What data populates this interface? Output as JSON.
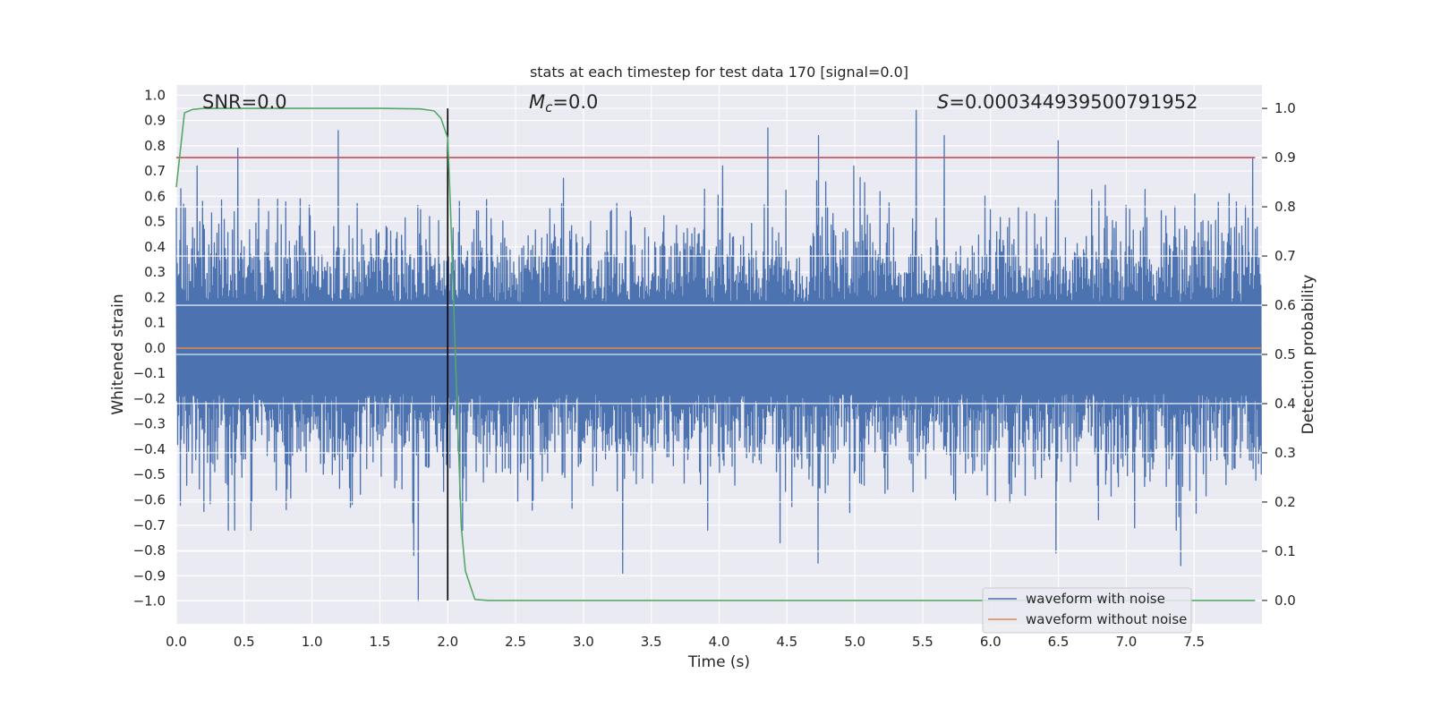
{
  "chart_data": {
    "type": "line",
    "title": "stats at each timestep for test data 170 [signal=0.0]",
    "xlabel": "Time (s)",
    "ylabel": "Whitened strain",
    "y2label": "Detection probability",
    "xlim": [
      0.0,
      8.0
    ],
    "ylim": [
      -1.09,
      1.04
    ],
    "y2lim": [
      -0.0475,
      1.0475
    ],
    "xticks": [
      "0.0",
      "0.5",
      "1.0",
      "1.5",
      "2.0",
      "2.5",
      "3.0",
      "3.5",
      "4.0",
      "4.5",
      "5.0",
      "5.5",
      "6.0",
      "6.5",
      "7.0",
      "7.5"
    ],
    "yticks": [
      "1.0",
      "0.9",
      "0.8",
      "0.7",
      "0.6",
      "0.5",
      "0.4",
      "0.3",
      "0.2",
      "0.1",
      "0.0",
      "−0.1",
      "−0.2",
      "−0.3",
      "−0.4",
      "−0.5",
      "−0.6",
      "−0.7",
      "−0.8",
      "−0.9",
      "−1.0"
    ],
    "y2ticks": [
      "1.0",
      "0.9",
      "0.8",
      "0.7",
      "0.6",
      "0.5",
      "0.4",
      "0.3",
      "0.2",
      "0.1",
      "0.0"
    ],
    "annotations": {
      "snr": "SNR=0.0",
      "mc_prefix": "M",
      "mc_sub": "c",
      "mc_suffix": "=0.0",
      "s_prefix": "S",
      "s_suffix": "=0.000344939500791952"
    },
    "series": [
      {
        "name": "waveform with noise",
        "axis": "left",
        "color": "#4c72b0",
        "description": "dense noise series, approx envelope +/-0.4 with spikes up to 0.94 and down to -1.0",
        "envelope_peaks_top": [
          [
            0.03,
            0.63
          ],
          [
            0.45,
            0.79
          ],
          [
            1.19,
            0.86
          ],
          [
            4.36,
            0.87
          ],
          [
            4.73,
            0.84
          ],
          [
            5.45,
            0.94
          ],
          [
            5.66,
            0.84
          ],
          [
            6.5,
            0.82
          ],
          [
            7.93,
            0.75
          ]
        ],
        "envelope_peaks_bottom": [
          [
            0.55,
            -0.72
          ],
          [
            1.75,
            -0.82
          ],
          [
            1.78,
            -1.0
          ],
          [
            3.29,
            -0.89
          ],
          [
            4.45,
            -0.77
          ],
          [
            4.73,
            -0.85
          ],
          [
            6.48,
            -0.81
          ],
          [
            7.4,
            -0.86
          ]
        ]
      },
      {
        "name": "waveform without noise",
        "axis": "left",
        "color": "#dd8452",
        "x": [
          0.0,
          8.0
        ],
        "values": [
          0.0,
          0.0
        ]
      },
      {
        "name": "detection probability",
        "axis": "right",
        "color": "#55a868",
        "x": [
          0.0,
          0.06,
          0.12,
          0.2,
          0.5,
          1.0,
          1.5,
          1.8,
          1.9,
          1.95,
          2.0,
          2.02,
          2.05,
          2.1,
          2.13,
          2.2,
          2.3,
          3.0,
          5.0,
          7.0,
          7.95
        ],
        "values": [
          0.84,
          0.991,
          0.998,
          1.0,
          1.0,
          1.0,
          1.0,
          0.999,
          0.995,
          0.98,
          0.94,
          0.8,
          0.55,
          0.15,
          0.06,
          0.002,
          0.0,
          0.0,
          0.0,
          0.0,
          0.0
        ]
      }
    ],
    "threshold": {
      "axis": "right",
      "value": 0.9,
      "color": "#c44e52"
    },
    "vline": {
      "x": 2.0,
      "color": "#000000"
    },
    "legend": {
      "location": "lower-right",
      "entries": [
        {
          "label": "waveform with noise",
          "color": "#4c72b0"
        },
        {
          "label": "waveform without noise",
          "color": "#dd8452"
        }
      ]
    }
  }
}
